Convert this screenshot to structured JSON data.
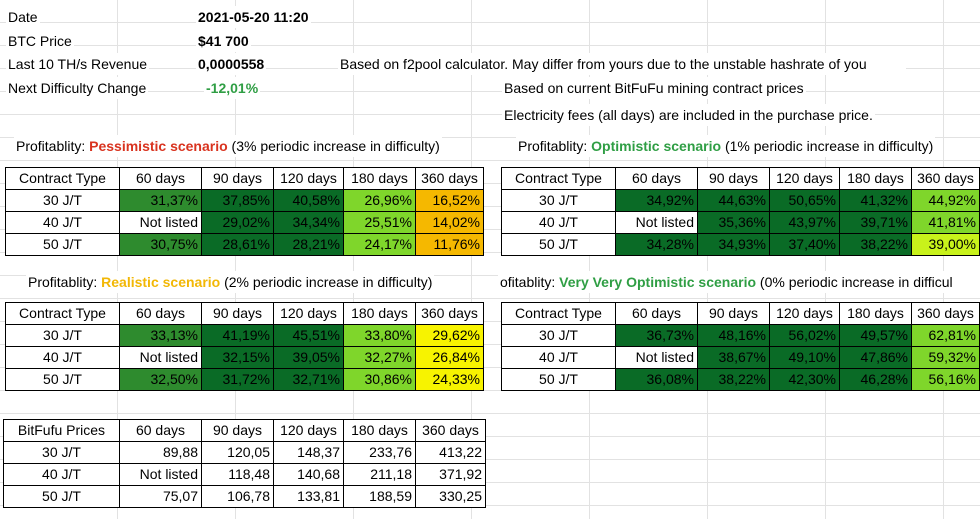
{
  "info": {
    "date_label": "Date",
    "date_value": "2021-05-20 11:20",
    "btc_label": "BTC Price",
    "btc_value": "$41 700",
    "revenue_label": "Last 10 TH/s Revenue",
    "revenue_value": "0,0000558",
    "difficulty_label": "Next Difficulty Change",
    "difficulty_value": "-12,01%",
    "note_f2pool": "Based on f2pool calculator. May differ from yours due to the unstable hashrate of you",
    "note_bitfufu": "Based on current BitFuFu mining contract prices",
    "note_electricity": "Electricity fees (all days) are included in the purchase price."
  },
  "colors": {
    "dark_green": "#0a6b26",
    "mid_green": "#2e8b2e",
    "light_green": "#7fd62b",
    "yellow_green": "#c8f21b",
    "yellow": "#f7f300",
    "orange": "#f5b800"
  },
  "headers": [
    "Contract Type",
    "60 days",
    "90 days",
    "120 days",
    "180 days",
    "360 days"
  ],
  "scenarios": [
    {
      "title_prefix": "Profitablity: ",
      "title_name": "Pessimistic scenario",
      "title_suffix": " (3% periodic increase in difficulty)",
      "rows": [
        [
          "30 J/T",
          "31,37%",
          "37,85%",
          "40,58%",
          "26,96%",
          "16,52%"
        ],
        [
          "40 J/T",
          "Not listed",
          "29,02%",
          "34,34%",
          "25,51%",
          "14,02%"
        ],
        [
          "50 J/T",
          "30,75%",
          "28,61%",
          "28,21%",
          "24,17%",
          "11,76%"
        ]
      ]
    },
    {
      "title_prefix": "Profitablity: ",
      "title_name": "Optimistic scenario",
      "title_suffix": " (1% periodic increase in difficulty)",
      "rows": [
        [
          "30 J/T",
          "34,92%",
          "44,63%",
          "50,65%",
          "41,32%",
          "44,92%"
        ],
        [
          "40 J/T",
          "Not listed",
          "35,36%",
          "43,97%",
          "39,71%",
          "41,81%"
        ],
        [
          "50 J/T",
          "34,28%",
          "34,93%",
          "37,40%",
          "38,22%",
          "39,00%"
        ]
      ]
    },
    {
      "title_prefix": "Profitablity: ",
      "title_name": "Realistic scenario",
      "title_suffix": " (2% periodic increase in difficulty)",
      "rows": [
        [
          "30 J/T",
          "33,13%",
          "41,19%",
          "45,51%",
          "33,80%",
          "29,62%"
        ],
        [
          "40 J/T",
          "Not listed",
          "32,15%",
          "39,05%",
          "32,27%",
          "26,84%"
        ],
        [
          "50 J/T",
          "32,50%",
          "31,72%",
          "32,71%",
          "30,86%",
          "24,33%"
        ]
      ]
    },
    {
      "title_prefix": "ofitablity: ",
      "title_name": "Very Very Optimistic scenario",
      "title_suffix": " (0% periodic increase in difficul",
      "rows": [
        [
          "30 J/T",
          "36,73%",
          "48,16%",
          "56,02%",
          "49,57%",
          "62,81%"
        ],
        [
          "40 J/T",
          "Not listed",
          "38,67%",
          "49,10%",
          "47,86%",
          "59,32%"
        ],
        [
          "50 J/T",
          "36,08%",
          "38,22%",
          "42,30%",
          "46,28%",
          "56,16%"
        ]
      ]
    }
  ],
  "prices": {
    "headers": [
      "BitFufu Prices",
      "60 days",
      "90 days",
      "120 days",
      "180 days",
      "360 days"
    ],
    "rows": [
      [
        "30 J/T",
        "89,88",
        "120,05",
        "148,37",
        "233,76",
        "413,22"
      ],
      [
        "40 J/T",
        "Not listed",
        "118,48",
        "140,68",
        "211,18",
        "371,92"
      ],
      [
        "50 J/T",
        "75,07",
        "106,78",
        "133,81",
        "188,59",
        "330,25"
      ]
    ]
  }
}
